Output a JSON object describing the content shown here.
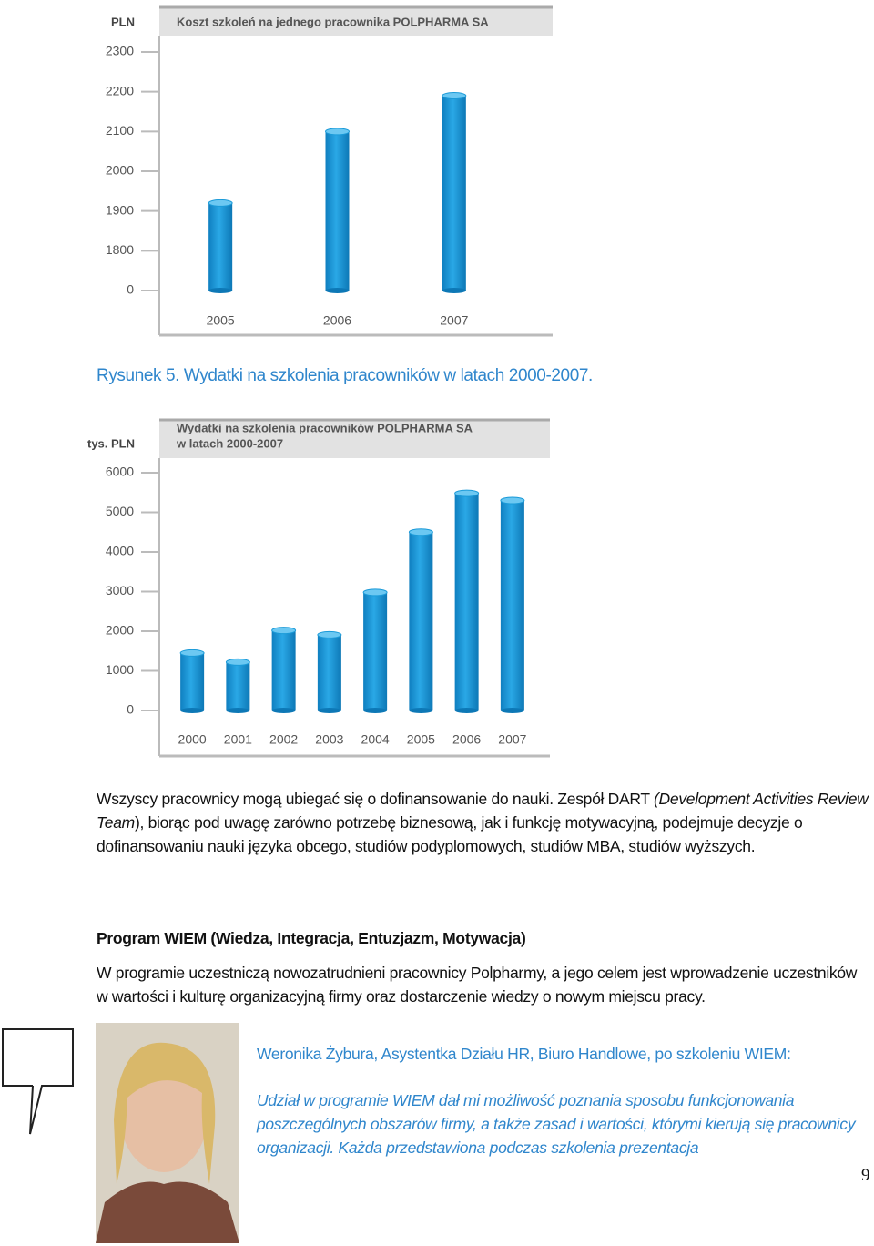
{
  "chart_data": [
    {
      "type": "bar",
      "ylabel": "PLN",
      "title": [
        "Koszt szkoleń na jednego pracownika POLPHARMA SA"
      ],
      "categories": [
        "2005",
        "2006",
        "2007"
      ],
      "values": [
        1920,
        2100,
        2190
      ],
      "color": "#1a9ad8",
      "ylim": [
        0,
        2300
      ],
      "yticks": [
        0,
        1800,
        1900,
        2000,
        2100,
        2200,
        2300
      ]
    },
    {
      "type": "bar",
      "ylabel": "tys. PLN",
      "title": [
        "Wydatki na szkolenia pracowników POLPHARMA SA",
        "w latach 2000-2007"
      ],
      "categories": [
        "2000",
        "2001",
        "2002",
        "2003",
        "2004",
        "2005",
        "2006",
        "2007"
      ],
      "values": [
        1450,
        1220,
        2020,
        1910,
        2980,
        4500,
        5480,
        5300
      ],
      "color": "#1a9ad8",
      "ylim": [
        0,
        6000
      ],
      "yticks": [
        0,
        1000,
        2000,
        3000,
        4000,
        5000,
        6000
      ]
    }
  ],
  "caption": "Rysunek 5. Wydatki na szkolenia pracowników w latach 2000-2007.",
  "paragraph1": [
    "Wszyscy pracownicy mogą ubiegać się o dofinansowanie do nauki. Zespół DART ",
    "(Development Activities Review Team",
    "), biorąc pod uwagę zarówno potrzebę biznesową, jak i funkcję motywacyjną, podejmuje decyzje o dofinansowaniu nauki języka obcego, studiów podyplomowych, studiów MBA, studiów wyższych."
  ],
  "heading": "Program WIEM  (Wiedza, Integracja, Entuzjazm, Motywacja)",
  "paragraph2": "W programie uczestniczą nowozatrudnieni pracownicy Polpharmy, a jego celem jest wprowadzenie uczestników w wartości i kulturę organizacyjną firmy oraz dostarczenie wiedzy o nowym miejscu pracy.",
  "quote": {
    "author": "Weronika Żybura, Asystentka Działu HR, Biuro Handlowe, po szkoleniu WIEM:",
    "text": "Udział w programie WIEM dał mi możliwość poznania sposobu funkcjonowania poszczególnych obszarów firmy, a także zasad i wartości, którymi kierują się pracownicy organizacji. Każda przedstawiona podczas szkolenia prezentacja"
  },
  "page_number": 9
}
